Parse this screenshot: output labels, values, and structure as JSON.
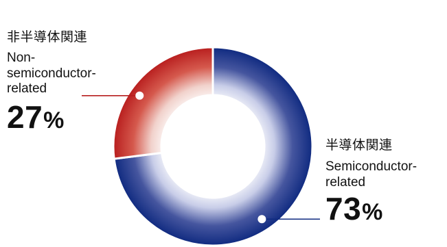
{
  "chart_data": {
    "type": "pie",
    "variant": "donut",
    "slices": [
      {
        "label_jp": "半導体関連",
        "label_en": "Semiconductor-\nrelated",
        "value": 73,
        "value_label": "73",
        "unit": "%",
        "color": "#0f2a80"
      },
      {
        "label_jp": "非半導体関連",
        "label_en": "Non-\nsemiconductor-\nrelated",
        "value": 27,
        "value_label": "27",
        "unit": "%",
        "color": "#b81e1e"
      }
    ],
    "legend": "none",
    "leader_color": "#b81e1e"
  }
}
